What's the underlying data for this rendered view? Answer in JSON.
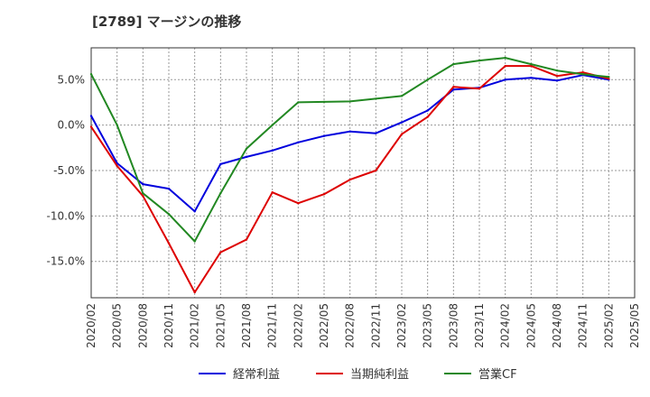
{
  "chart_data": {
    "type": "line",
    "title": "[2789]  マージンの推移",
    "xlabel": "",
    "ylabel": "",
    "ylim": [
      -19,
      8.5
    ],
    "yticks": [
      5,
      0,
      -5,
      -10,
      -15
    ],
    "ytick_labels": [
      "5.0%",
      "0.0%",
      "-5.0%",
      "-10.0%",
      "-15.0%"
    ],
    "x": [
      "2020/02",
      "2020/05",
      "2020/08",
      "2020/11",
      "2021/02",
      "2021/05",
      "2021/08",
      "2021/11",
      "2022/02",
      "2022/05",
      "2022/08",
      "2022/11",
      "2023/02",
      "2023/05",
      "2023/08",
      "2023/11",
      "2024/02",
      "2024/05",
      "2024/08",
      "2024/11",
      "2025/02",
      "2025/05"
    ],
    "grid": true,
    "legend_position": "bottom",
    "series": [
      {
        "name": "経常利益",
        "color": "#0000dd",
        "values": [
          1.0,
          -4.2,
          -6.5,
          -7.0,
          -9.5,
          -4.3,
          -3.5,
          -2.8,
          -1.9,
          -1.2,
          -0.7,
          -0.9,
          0.3,
          1.6,
          3.9,
          4.1,
          5.0,
          5.2,
          4.9,
          5.5,
          5.0,
          null
        ]
      },
      {
        "name": "当期純利益",
        "color": "#dd0000",
        "values": [
          -0.2,
          -4.5,
          -7.8,
          -13.0,
          -18.4,
          -14.0,
          -12.6,
          -7.4,
          -8.6,
          -7.6,
          -6.0,
          -5.0,
          -1.0,
          0.9,
          4.2,
          4.0,
          6.5,
          6.5,
          5.4,
          5.8,
          5.1,
          null
        ]
      },
      {
        "name": "営業CF",
        "color": "#228822",
        "values": [
          5.6,
          0.0,
          -7.5,
          -9.8,
          -12.8,
          -7.5,
          -2.6,
          0.0,
          2.5,
          2.55,
          2.6,
          2.9,
          3.2,
          5.0,
          6.7,
          7.1,
          7.4,
          6.7,
          6.0,
          5.6,
          5.3,
          null
        ]
      }
    ]
  }
}
